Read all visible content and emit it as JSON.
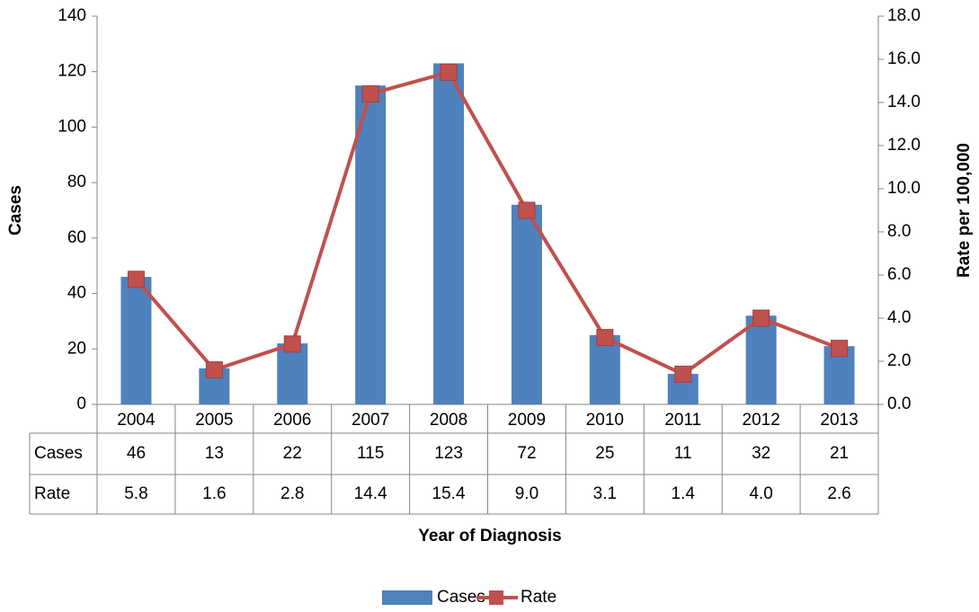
{
  "chart_data": {
    "type": "bar",
    "categories": [
      "2004",
      "2005",
      "2006",
      "2007",
      "2008",
      "2009",
      "2010",
      "2011",
      "2012",
      "2013"
    ],
    "series": [
      {
        "name": "Cases",
        "type": "bar",
        "color": "#4f81bd",
        "values": [
          46,
          13,
          22,
          115,
          123,
          72,
          25,
          11,
          32,
          21
        ]
      },
      {
        "name": "Rate",
        "type": "line",
        "axis": "y2",
        "color": "#c0504d",
        "values": [
          5.8,
          1.6,
          2.8,
          14.4,
          15.4,
          9.0,
          3.1,
          1.4,
          4.0,
          2.6
        ],
        "value_labels": [
          "5.8",
          "1.6",
          "2.8",
          "14.4",
          "15.4",
          "9.0",
          "3.1",
          "1.4",
          "4.0",
          "2.6"
        ]
      }
    ],
    "ylabel": "Cases",
    "y2label": "Rate per 100,000",
    "xlabel": "Year of Diagnosis",
    "ylim": [
      0,
      140
    ],
    "yticks": [
      0,
      20,
      40,
      60,
      80,
      100,
      120,
      140
    ],
    "y2lim": [
      0,
      18
    ],
    "y2ticks": [
      {
        "value": 0,
        "label": "0.0"
      },
      {
        "value": 2,
        "label": "2.0"
      },
      {
        "value": 4,
        "label": "4.0"
      },
      {
        "value": 6,
        "label": "6.0"
      },
      {
        "value": 8,
        "label": "8.0"
      },
      {
        "value": 10,
        "label": "10.0"
      },
      {
        "value": 12,
        "label": "12.0"
      },
      {
        "value": 14,
        "label": "14.0"
      },
      {
        "value": 16,
        "label": "16.0"
      },
      {
        "value": 18,
        "label": "18.0"
      }
    ],
    "grid": false,
    "legend": "bottom"
  }
}
